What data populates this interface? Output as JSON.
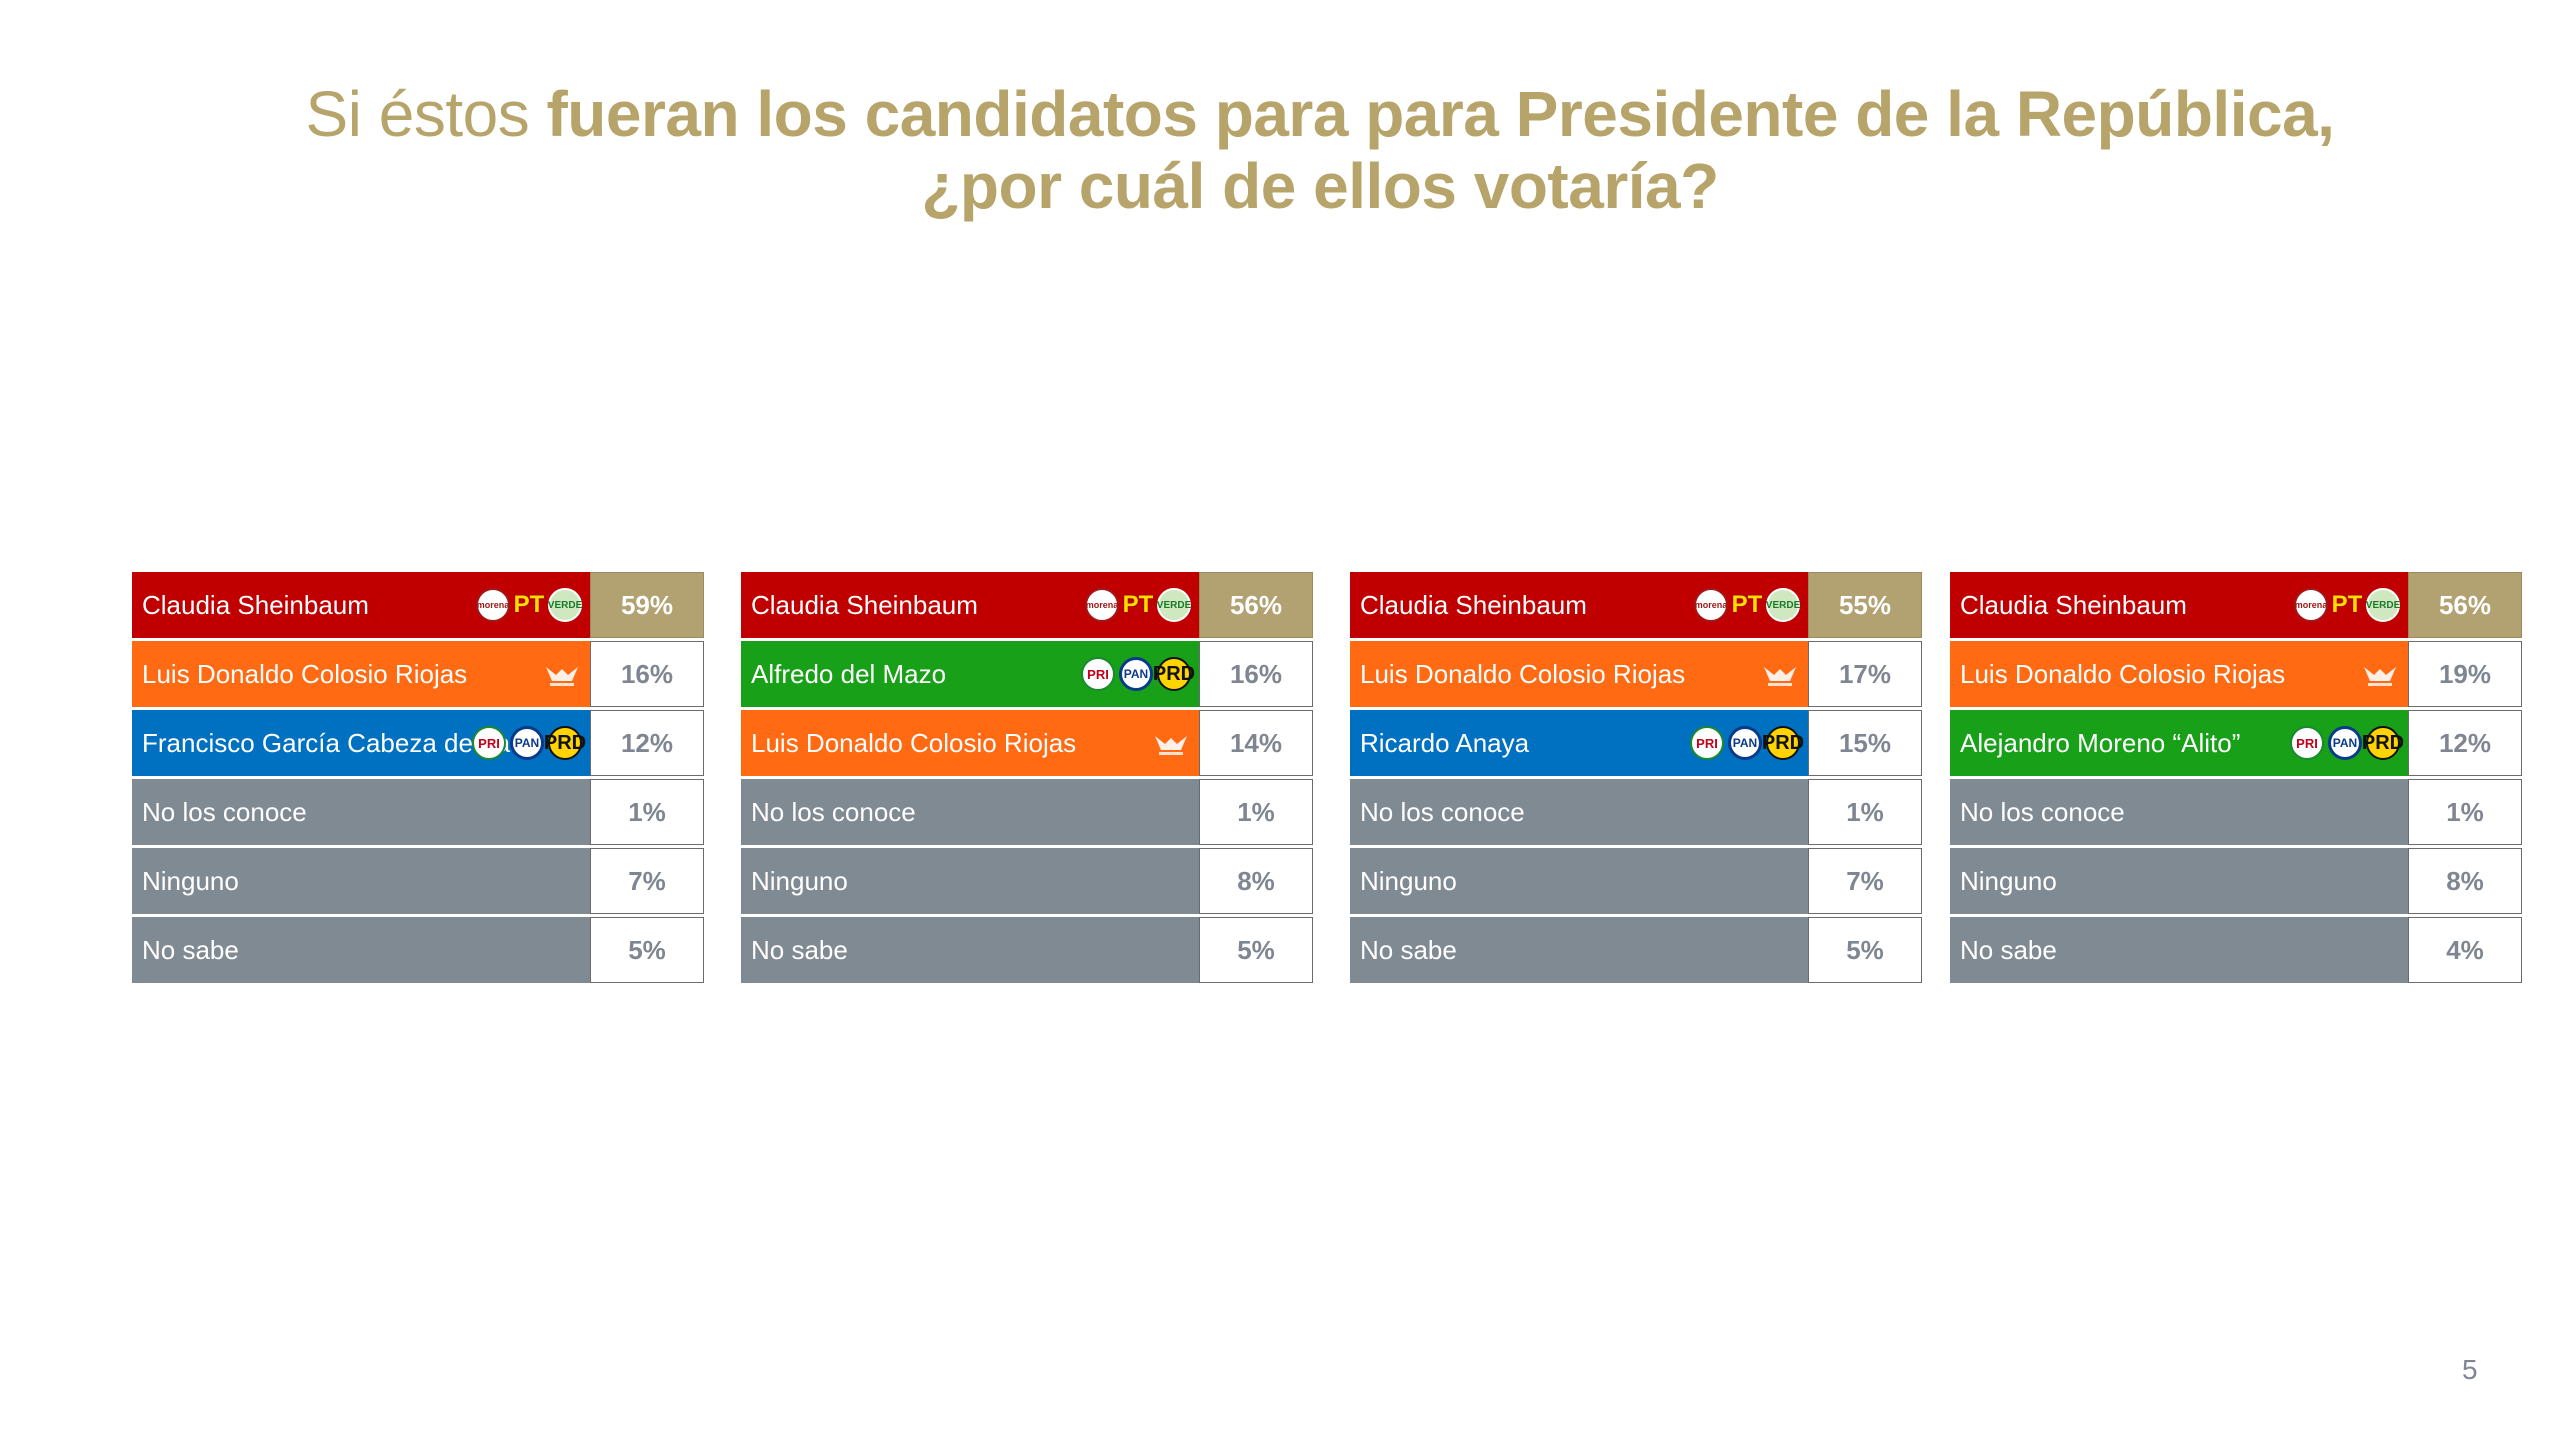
{
  "title": {
    "light": "Si éstos ",
    "bold_line1": "fueran los candidatos para para Presidente de la República,",
    "bold_line2": "¿por cuál de ellos votaría?"
  },
  "colors": {
    "morena_red": "#c00000",
    "mc_orange": "#ff6a13",
    "pan_blue": "#0070c0",
    "pri_green": "#18a018",
    "neutral_gray": "#808a93",
    "gold": "#b2a171"
  },
  "tables": [
    {
      "rows": [
        {
          "name": "Claudia Sheinbaum",
          "pct": "59%",
          "color": "#c00000",
          "logos": [
            "morena",
            "pt",
            "pvem"
          ],
          "lead": true
        },
        {
          "name": "Luis Donaldo Colosio Riojas",
          "pct": "16%",
          "color": "#ff6a13",
          "logos": [
            "mc"
          ]
        },
        {
          "name": "Francisco García Cabeza de Vaca",
          "pct": "12%",
          "color": "#0070c0",
          "logos": [
            "pri",
            "pan",
            "prd"
          ]
        },
        {
          "name": "No los conoce",
          "pct": "1%",
          "color": "#808a93",
          "logos": []
        },
        {
          "name": "Ninguno",
          "pct": "7%",
          "color": "#808a93",
          "logos": []
        },
        {
          "name": "No sabe",
          "pct": "5%",
          "color": "#808a93",
          "logos": []
        }
      ]
    },
    {
      "rows": [
        {
          "name": "Claudia Sheinbaum",
          "pct": "56%",
          "color": "#c00000",
          "logos": [
            "morena",
            "pt",
            "pvem"
          ],
          "lead": true
        },
        {
          "name": "Alfredo del Mazo",
          "pct": "16%",
          "color": "#18a018",
          "logos": [
            "pri",
            "pan",
            "prd"
          ]
        },
        {
          "name": "Luis Donaldo Colosio Riojas",
          "pct": "14%",
          "color": "#ff6a13",
          "logos": [
            "mc"
          ]
        },
        {
          "name": "No los conoce",
          "pct": "1%",
          "color": "#808a93",
          "logos": []
        },
        {
          "name": "Ninguno",
          "pct": "8%",
          "color": "#808a93",
          "logos": []
        },
        {
          "name": "No sabe",
          "pct": "5%",
          "color": "#808a93",
          "logos": []
        }
      ]
    },
    {
      "rows": [
        {
          "name": "Claudia Sheinbaum",
          "pct": "55%",
          "color": "#c00000",
          "logos": [
            "morena",
            "pt",
            "pvem"
          ],
          "lead": true
        },
        {
          "name": "Luis Donaldo Colosio Riojas",
          "pct": "17%",
          "color": "#ff6a13",
          "logos": [
            "mc"
          ]
        },
        {
          "name": "Ricardo Anaya",
          "pct": "15%",
          "color": "#0070c0",
          "logos": [
            "pri",
            "pan",
            "prd"
          ]
        },
        {
          "name": "No los conoce",
          "pct": "1%",
          "color": "#808a93",
          "logos": []
        },
        {
          "name": "Ninguno",
          "pct": "7%",
          "color": "#808a93",
          "logos": []
        },
        {
          "name": "No sabe",
          "pct": "5%",
          "color": "#808a93",
          "logos": []
        }
      ]
    },
    {
      "rows": [
        {
          "name": "Claudia Sheinbaum",
          "pct": "56%",
          "color": "#c00000",
          "logos": [
            "morena",
            "pt",
            "pvem"
          ],
          "lead": true
        },
        {
          "name": "Luis Donaldo Colosio Riojas",
          "pct": "19%",
          "color": "#ff6a13",
          "logos": [
            "mc"
          ]
        },
        {
          "name": "Alejandro Moreno “Alito”",
          "pct": "12%",
          "color": "#18a018",
          "logos": [
            "pri",
            "pan",
            "prd"
          ]
        },
        {
          "name": "No los conoce",
          "pct": "1%",
          "color": "#808a93",
          "logos": []
        },
        {
          "name": "Ninguno",
          "pct": "8%",
          "color": "#808a93",
          "logos": []
        },
        {
          "name": "No sabe",
          "pct": "4%",
          "color": "#808a93",
          "logos": []
        }
      ]
    }
  ],
  "logo_text": {
    "morena": "morena",
    "pt": "PT",
    "pvem": "VERDE",
    "pri": "PRI",
    "pan": "PAN",
    "prd": "PRD"
  },
  "page_number": "5"
}
